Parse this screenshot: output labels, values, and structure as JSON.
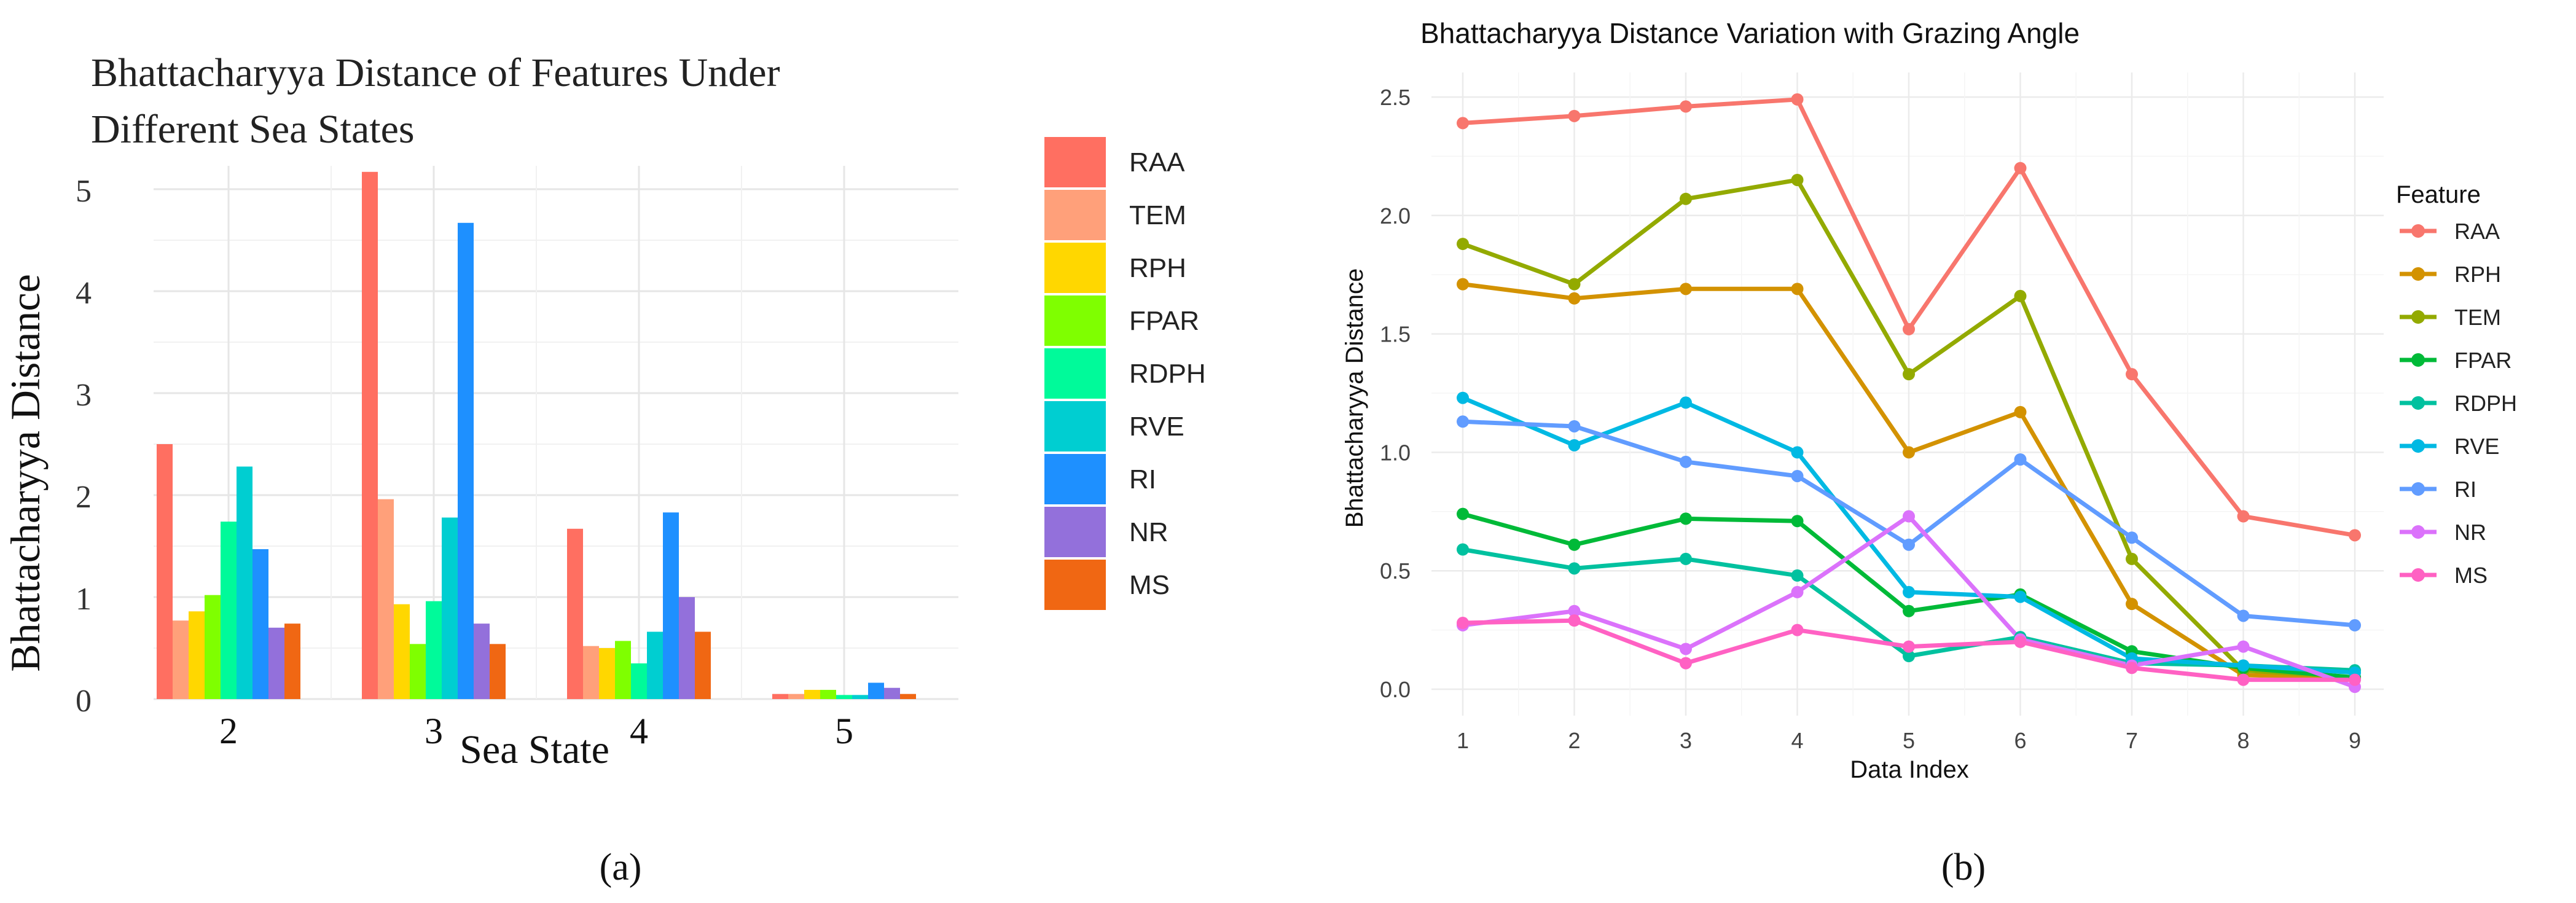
{
  "chart_data": [
    {
      "type": "bar",
      "title_lines": [
        "Bhattacharyya Distance of Features Under",
        "Different Sea States"
      ],
      "xlabel": "Sea State",
      "ylabel": "Bhattacharyya Distance",
      "categories": [
        "2",
        "3",
        "4",
        "5"
      ],
      "ylim": [
        0,
        5.3
      ],
      "yticks": [
        "0",
        "1",
        "2",
        "3",
        "4",
        "5"
      ],
      "legend_position": "right",
      "panel_label": "(a)",
      "series": [
        {
          "name": "RAA",
          "color": "#FF6F61",
          "values": [
            2.5,
            5.17,
            1.67,
            0.05
          ]
        },
        {
          "name": "TEM",
          "color": "#FFA07A",
          "values": [
            0.77,
            1.96,
            0.52,
            0.05
          ]
        },
        {
          "name": "RPH",
          "color": "#FFD700",
          "values": [
            0.86,
            0.93,
            0.5,
            0.09
          ]
        },
        {
          "name": "FPAR",
          "color": "#7FFF00",
          "values": [
            1.02,
            0.54,
            0.57,
            0.09
          ]
        },
        {
          "name": "RDPH",
          "color": "#00FA9A",
          "values": [
            1.74,
            0.96,
            0.35,
            0.04
          ]
        },
        {
          "name": "RVE",
          "color": "#00CED1",
          "values": [
            2.28,
            1.78,
            0.66,
            0.04
          ]
        },
        {
          "name": "RI",
          "color": "#1E90FF",
          "values": [
            1.47,
            4.67,
            1.83,
            0.16
          ]
        },
        {
          "name": "NR",
          "color": "#9370DB",
          "values": [
            0.7,
            0.74,
            1.0,
            0.11
          ]
        },
        {
          "name": "MS",
          "color": "#F06713",
          "values": [
            0.74,
            0.54,
            0.66,
            0.05
          ]
        }
      ]
    },
    {
      "type": "line",
      "title": "Bhattacharyya Distance Variation with Grazing Angle",
      "xlabel": "Data Index",
      "ylabel": "Bhattacharyya Distance",
      "x": [
        1,
        2,
        3,
        4,
        5,
        6,
        7,
        8,
        9
      ],
      "xticks": [
        "1",
        "2",
        "3",
        "4",
        "5",
        "6",
        "7",
        "8",
        "9"
      ],
      "yticks": [
        "0.0",
        "0.5",
        "1.0",
        "1.5",
        "2.0",
        "2.5"
      ],
      "ylim": [
        -0.1,
        2.6
      ],
      "legend_title": "Feature",
      "legend_position": "right",
      "panel_label": "(b)",
      "series": [
        {
          "name": "RAA",
          "color": "#F8766D",
          "values": [
            2.39,
            2.42,
            2.46,
            2.49,
            1.52,
            2.2,
            1.33,
            0.73,
            0.65
          ]
        },
        {
          "name": "RPH",
          "color": "#D39200",
          "values": [
            1.71,
            1.65,
            1.69,
            1.69,
            1.0,
            1.17,
            0.36,
            0.06,
            0.05
          ]
        },
        {
          "name": "TEM",
          "color": "#93AA00",
          "values": [
            1.88,
            1.71,
            2.07,
            2.15,
            1.33,
            1.66,
            0.55,
            0.08,
            0.05
          ]
        },
        {
          "name": "FPAR",
          "color": "#00BA38",
          "values": [
            0.74,
            0.61,
            0.72,
            0.71,
            0.33,
            0.4,
            0.16,
            0.09,
            0.05
          ]
        },
        {
          "name": "RDPH",
          "color": "#00C19F",
          "values": [
            0.59,
            0.51,
            0.55,
            0.48,
            0.14,
            0.22,
            0.11,
            0.1,
            0.08
          ]
        },
        {
          "name": "RVE",
          "color": "#00B9E3",
          "values": [
            1.23,
            1.03,
            1.21,
            1.0,
            0.41,
            0.39,
            0.13,
            0.1,
            0.07
          ]
        },
        {
          "name": "RI",
          "color": "#619CFF",
          "values": [
            1.13,
            1.11,
            0.96,
            0.9,
            0.61,
            0.97,
            0.64,
            0.31,
            0.27
          ]
        },
        {
          "name": "NR",
          "color": "#DB72FB",
          "values": [
            0.27,
            0.33,
            0.17,
            0.41,
            0.73,
            0.21,
            0.1,
            0.18,
            0.01
          ]
        },
        {
          "name": "MS",
          "color": "#FF61C3",
          "values": [
            0.28,
            0.29,
            0.11,
            0.25,
            0.18,
            0.2,
            0.09,
            0.04,
            0.04
          ]
        }
      ]
    }
  ]
}
